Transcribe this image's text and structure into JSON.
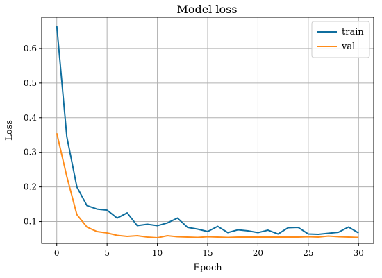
{
  "chart_data": {
    "type": "line",
    "title": "Model loss",
    "xlabel": "Epoch",
    "ylabel": "Loss",
    "xlim": [
      -1.5,
      31.5
    ],
    "ylim": [
      0.037,
      0.69
    ],
    "xticks": [
      0,
      5,
      10,
      15,
      20,
      25,
      30
    ],
    "yticks": [
      0.1,
      0.2,
      0.3,
      0.4,
      0.5,
      0.6
    ],
    "grid": true,
    "legend": "top-right",
    "x": [
      0,
      1,
      2,
      3,
      4,
      5,
      6,
      7,
      8,
      9,
      10,
      11,
      12,
      13,
      14,
      15,
      16,
      17,
      18,
      19,
      20,
      21,
      22,
      23,
      24,
      25,
      26,
      27,
      28,
      29,
      30
    ],
    "series": [
      {
        "name": "train",
        "color": "#0f6e9e",
        "values": [
          0.665,
          0.345,
          0.2,
          0.146,
          0.136,
          0.133,
          0.11,
          0.125,
          0.088,
          0.092,
          0.088,
          0.096,
          0.11,
          0.083,
          0.078,
          0.071,
          0.086,
          0.068,
          0.076,
          0.073,
          0.068,
          0.075,
          0.064,
          0.082,
          0.083,
          0.064,
          0.063,
          0.066,
          0.069,
          0.084,
          0.067
        ]
      },
      {
        "name": "val",
        "color": "#ff8c1a",
        "values": [
          0.355,
          0.23,
          0.12,
          0.084,
          0.071,
          0.067,
          0.06,
          0.057,
          0.059,
          0.055,
          0.053,
          0.059,
          0.056,
          0.055,
          0.054,
          0.056,
          0.055,
          0.054,
          0.055,
          0.055,
          0.055,
          0.055,
          0.055,
          0.055,
          0.055,
          0.056,
          0.055,
          0.058,
          0.056,
          0.055,
          0.054
        ]
      }
    ]
  }
}
